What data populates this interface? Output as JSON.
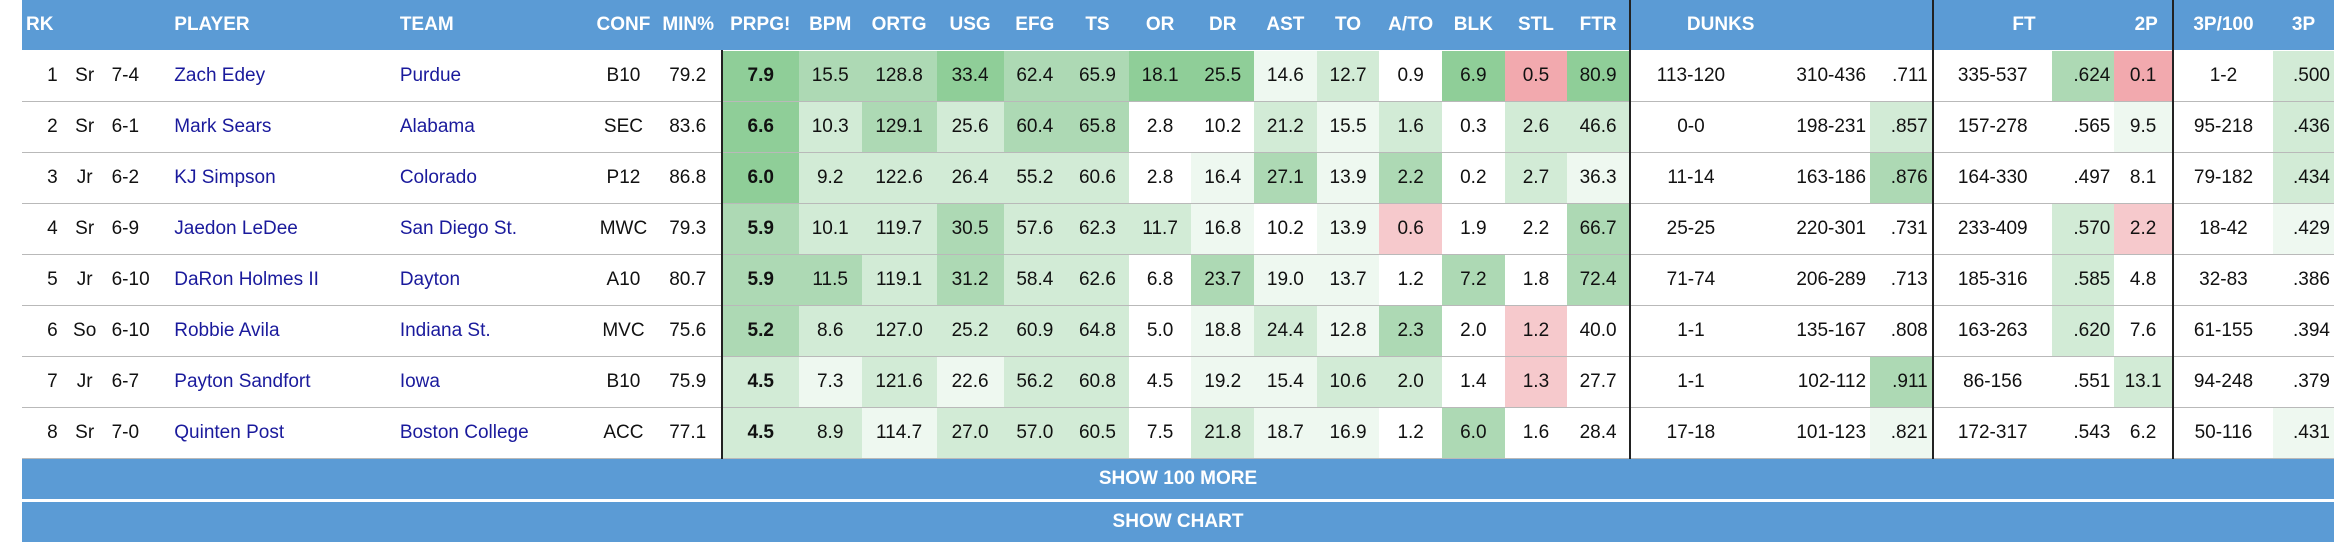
{
  "columns": {
    "rk": "RK",
    "player": "PLAYER",
    "team": "TEAM",
    "conf": "CONF",
    "min": "MIN%",
    "prpg": "PRPG!",
    "bpm": "BPM",
    "ortg": "ORTG",
    "usg": "USG",
    "efg": "EFG",
    "ts": "TS",
    "or": "OR",
    "dr": "DR",
    "ast": "AST",
    "to": "TO",
    "ato": "A/TO",
    "blk": "BLK",
    "stl": "STL",
    "ftr": "FTR",
    "dunks": "DUNKS",
    "ft": "FT",
    "twop": "2P",
    "threep100": "3P/100",
    "threep": "3P"
  },
  "rows": [
    {
      "rk": "1",
      "cls": "Sr",
      "ht": "7-4",
      "player": "Zach Edey",
      "team": "Purdue",
      "conf": "B10",
      "min": "79.2",
      "prpg": "7.9",
      "bpm": "15.5",
      "ortg": "128.8",
      "usg": "33.4",
      "efg": "62.4",
      "ts": "65.9",
      "or": "18.1",
      "dr": "25.5",
      "ast": "14.6",
      "to": "12.7",
      "ato": "0.9",
      "blk": "6.9",
      "stl": "0.5",
      "ftr": "80.9",
      "dunks": "113-120",
      "twop_made": "310-436",
      "twop_pct": ".711",
      "ft_made": "335-537",
      "ft_pct": ".624",
      "threep100": "0.1",
      "threep_made": "1-2",
      "threep_pct": ".500"
    },
    {
      "rk": "2",
      "cls": "Sr",
      "ht": "6-1",
      "player": "Mark Sears",
      "team": "Alabama",
      "conf": "SEC",
      "min": "83.6",
      "prpg": "6.6",
      "bpm": "10.3",
      "ortg": "129.1",
      "usg": "25.6",
      "efg": "60.4",
      "ts": "65.8",
      "or": "2.8",
      "dr": "10.2",
      "ast": "21.2",
      "to": "15.5",
      "ato": "1.6",
      "blk": "0.3",
      "stl": "2.6",
      "ftr": "46.6",
      "dunks": "0-0",
      "twop_made": "198-231",
      "twop_pct": ".857",
      "ft_made": "157-278",
      "ft_pct": ".565",
      "threep100": "9.5",
      "threep_made": "95-218",
      "threep_pct": ".436"
    },
    {
      "rk": "3",
      "cls": "Jr",
      "ht": "6-2",
      "player": "KJ Simpson",
      "team": "Colorado",
      "conf": "P12",
      "min": "86.8",
      "prpg": "6.0",
      "bpm": "9.2",
      "ortg": "122.6",
      "usg": "26.4",
      "efg": "55.2",
      "ts": "60.6",
      "or": "2.8",
      "dr": "16.4",
      "ast": "27.1",
      "to": "13.9",
      "ato": "2.2",
      "blk": "0.2",
      "stl": "2.7",
      "ftr": "36.3",
      "dunks": "11-14",
      "twop_made": "163-186",
      "twop_pct": ".876",
      "ft_made": "164-330",
      "ft_pct": ".497",
      "threep100": "8.1",
      "threep_made": "79-182",
      "threep_pct": ".434"
    },
    {
      "rk": "4",
      "cls": "Sr",
      "ht": "6-9",
      "player": "Jaedon LeDee",
      "team": "San Diego St.",
      "conf": "MWC",
      "min": "79.3",
      "prpg": "5.9",
      "bpm": "10.1",
      "ortg": "119.7",
      "usg": "30.5",
      "efg": "57.6",
      "ts": "62.3",
      "or": "11.7",
      "dr": "16.8",
      "ast": "10.2",
      "to": "13.9",
      "ato": "0.6",
      "blk": "1.9",
      "stl": "2.2",
      "ftr": "66.7",
      "dunks": "25-25",
      "twop_made": "220-301",
      "twop_pct": ".731",
      "ft_made": "233-409",
      "ft_pct": ".570",
      "threep100": "2.2",
      "threep_made": "18-42",
      "threep_pct": ".429"
    },
    {
      "rk": "5",
      "cls": "Jr",
      "ht": "6-10",
      "player": "DaRon Holmes II",
      "team": "Dayton",
      "conf": "A10",
      "min": "80.7",
      "prpg": "5.9",
      "bpm": "11.5",
      "ortg": "119.1",
      "usg": "31.2",
      "efg": "58.4",
      "ts": "62.6",
      "or": "6.8",
      "dr": "23.7",
      "ast": "19.0",
      "to": "13.7",
      "ato": "1.2",
      "blk": "7.2",
      "stl": "1.8",
      "ftr": "72.4",
      "dunks": "71-74",
      "twop_made": "206-289",
      "twop_pct": ".713",
      "ft_made": "185-316",
      "ft_pct": ".585",
      "threep100": "4.8",
      "threep_made": "32-83",
      "threep_pct": ".386"
    },
    {
      "rk": "6",
      "cls": "So",
      "ht": "6-10",
      "player": "Robbie Avila",
      "team": "Indiana St.",
      "conf": "MVC",
      "min": "75.6",
      "prpg": "5.2",
      "bpm": "8.6",
      "ortg": "127.0",
      "usg": "25.2",
      "efg": "60.9",
      "ts": "64.8",
      "or": "5.0",
      "dr": "18.8",
      "ast": "24.4",
      "to": "12.8",
      "ato": "2.3",
      "blk": "2.0",
      "stl": "1.2",
      "ftr": "40.0",
      "dunks": "1-1",
      "twop_made": "135-167",
      "twop_pct": ".808",
      "ft_made": "163-263",
      "ft_pct": ".620",
      "threep100": "7.6",
      "threep_made": "61-155",
      "threep_pct": ".394"
    },
    {
      "rk": "7",
      "cls": "Jr",
      "ht": "6-7",
      "player": "Payton Sandfort",
      "team": "Iowa",
      "conf": "B10",
      "min": "75.9",
      "prpg": "4.5",
      "bpm": "7.3",
      "ortg": "121.6",
      "usg": "22.6",
      "efg": "56.2",
      "ts": "60.8",
      "or": "4.5",
      "dr": "19.2",
      "ast": "15.4",
      "to": "10.6",
      "ato": "2.0",
      "blk": "1.4",
      "stl": "1.3",
      "ftr": "27.7",
      "dunks": "1-1",
      "twop_made": "102-112",
      "twop_pct": ".911",
      "ft_made": "86-156",
      "ft_pct": ".551",
      "threep100": "13.1",
      "threep_made": "94-248",
      "threep_pct": ".379"
    },
    {
      "rk": "8",
      "cls": "Sr",
      "ht": "7-0",
      "player": "Quinten Post",
      "team": "Boston College",
      "conf": "ACC",
      "min": "77.1",
      "prpg": "4.5",
      "bpm": "8.9",
      "ortg": "114.7",
      "usg": "27.0",
      "efg": "57.0",
      "ts": "60.5",
      "or": "7.5",
      "dr": "21.8",
      "ast": "18.7",
      "to": "16.9",
      "ato": "1.2",
      "blk": "6.0",
      "stl": "1.6",
      "ftr": "28.4",
      "dunks": "17-18",
      "twop_made": "101-123",
      "twop_pct": ".821",
      "ft_made": "172-317",
      "ft_pct": ".543",
      "threep100": "6.2",
      "threep_made": "50-116",
      "threep_pct": ".431"
    }
  ],
  "cell_colors": [
    {
      "prpg": "#8fce98",
      "bpm": "#add9b4",
      "ortg": "#add9b4",
      "usg": "#8fce98",
      "efg": "#add9b4",
      "ts": "#add9b4",
      "or": "#8fce98",
      "dr": "#8fce98",
      "ast": "#eef8f0",
      "to": "#d2ebd6",
      "ato": "",
      "blk": "#8fce98",
      "stl": "#f2a9ae",
      "ftr": "#8fce98",
      "twop_pct": "",
      "ft_pct": "#add9b4",
      "threep100": "#f2a9ae",
      "threep_pct": "#d2ebd6"
    },
    {
      "prpg": "#8fce98",
      "bpm": "#d2ebd6",
      "ortg": "#add9b4",
      "usg": "#d2ebd6",
      "efg": "#add9b4",
      "ts": "#add9b4",
      "or": "",
      "dr": "",
      "ast": "#d2ebd6",
      "to": "#eef8f0",
      "ato": "#d2ebd6",
      "blk": "",
      "stl": "#d2ebd6",
      "ftr": "#d2ebd6",
      "twop_pct": "#d2ebd6",
      "ft_pct": "",
      "threep100": "#eef8f0",
      "threep_pct": "#d2ebd6"
    },
    {
      "prpg": "#8fce98",
      "bpm": "#d2ebd6",
      "ortg": "#d2ebd6",
      "usg": "#d2ebd6",
      "efg": "#d2ebd6",
      "ts": "#d2ebd6",
      "or": "",
      "dr": "#eef8f0",
      "ast": "#add9b4",
      "to": "#eef8f0",
      "ato": "#add9b4",
      "blk": "",
      "stl": "#d2ebd6",
      "ftr": "#eef8f0",
      "twop_pct": "#add9b4",
      "ft_pct": "",
      "threep100": "",
      "threep_pct": "#d2ebd6"
    },
    {
      "prpg": "#add9b4",
      "bpm": "#d2ebd6",
      "ortg": "#d2ebd6",
      "usg": "#add9b4",
      "efg": "#d2ebd6",
      "ts": "#d2ebd6",
      "or": "#d2ebd6",
      "dr": "#eef8f0",
      "ast": "",
      "to": "#eef8f0",
      "ato": "#f6c9cc",
      "blk": "",
      "stl": "",
      "ftr": "#add9b4",
      "twop_pct": "",
      "ft_pct": "#d2ebd6",
      "threep100": "#f6c9cc",
      "threep_pct": "#eef8f0"
    },
    {
      "prpg": "#add9b4",
      "bpm": "#add9b4",
      "ortg": "#d2ebd6",
      "usg": "#add9b4",
      "efg": "#d2ebd6",
      "ts": "#d2ebd6",
      "or": "",
      "dr": "#add9b4",
      "ast": "#eef8f0",
      "to": "#eef8f0",
      "ato": "",
      "blk": "#add9b4",
      "stl": "",
      "ftr": "#add9b4",
      "twop_pct": "",
      "ft_pct": "#d2ebd6",
      "threep100": "",
      "threep_pct": ""
    },
    {
      "prpg": "#add9b4",
      "bpm": "#d2ebd6",
      "ortg": "#d2ebd6",
      "usg": "#d2ebd6",
      "efg": "#d2ebd6",
      "ts": "#d2ebd6",
      "or": "",
      "dr": "#eef8f0",
      "ast": "#d2ebd6",
      "to": "#eef8f0",
      "ato": "#add9b4",
      "blk": "",
      "stl": "#f6c9cc",
      "ftr": "",
      "twop_pct": "",
      "ft_pct": "#d2ebd6",
      "threep100": "",
      "threep_pct": ""
    },
    {
      "prpg": "#d2ebd6",
      "bpm": "#eef8f0",
      "ortg": "#d2ebd6",
      "usg": "#eef8f0",
      "efg": "#d2ebd6",
      "ts": "#d2ebd6",
      "or": "",
      "dr": "#eef8f0",
      "ast": "#eef8f0",
      "to": "#d2ebd6",
      "ato": "#d2ebd6",
      "blk": "",
      "stl": "#f6c9cc",
      "ftr": "",
      "twop_pct": "#add9b4",
      "ft_pct": "",
      "threep100": "#d2ebd6",
      "threep_pct": ""
    },
    {
      "prpg": "#d2ebd6",
      "bpm": "#d2ebd6",
      "ortg": "#eef8f0",
      "usg": "#d2ebd6",
      "efg": "#d2ebd6",
      "ts": "#d2ebd6",
      "or": "",
      "dr": "#d2ebd6",
      "ast": "#eef8f0",
      "to": "#eef8f0",
      "ato": "",
      "blk": "#add9b4",
      "stl": "",
      "ftr": "",
      "twop_pct": "#eef8f0",
      "ft_pct": "",
      "threep100": "",
      "threep_pct": "#eef8f0"
    }
  ],
  "buttons": {
    "show_more": "SHOW 100 MORE",
    "show_chart": "SHOW CHART"
  }
}
